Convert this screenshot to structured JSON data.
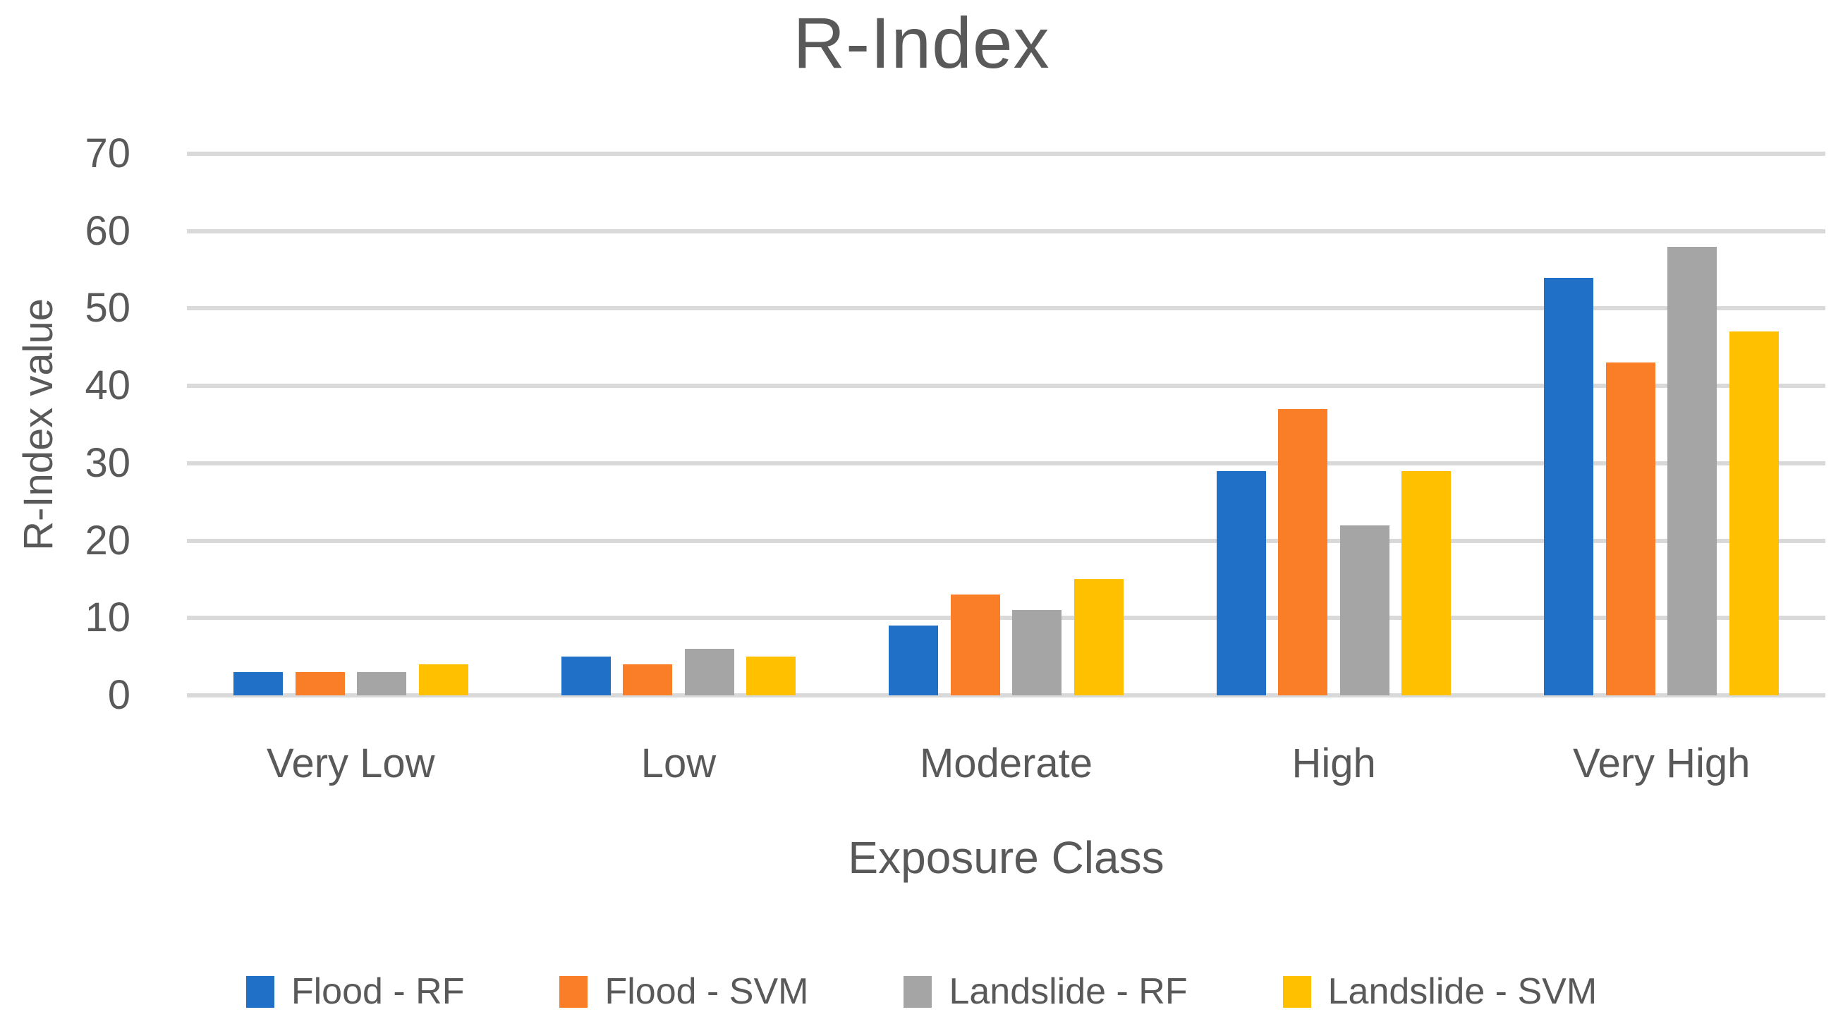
{
  "chart_data": {
    "type": "bar",
    "title": "R-Index",
    "xlabel": "Exposure Class",
    "ylabel": "R-Index value",
    "categories": [
      "Very Low",
      "Low",
      "Moderate",
      "High",
      "Very High"
    ],
    "series": [
      {
        "name": "Flood - RF",
        "color": "#2070C8",
        "values": [
          3,
          5,
          9,
          29,
          54
        ]
      },
      {
        "name": "Flood - SVM",
        "color": "#FA7D28",
        "values": [
          3,
          4,
          13,
          37,
          43
        ]
      },
      {
        "name": "Landslide - RF",
        "color": "#A5A5A5",
        "values": [
          3,
          6,
          11,
          22,
          58
        ]
      },
      {
        "name": "Landslide - SVM",
        "color": "#FFC000",
        "values": [
          4,
          5,
          15,
          29,
          47
        ]
      }
    ],
    "ylim": [
      0,
      70
    ],
    "yticks": [
      0,
      10,
      20,
      30,
      40,
      50,
      60,
      70
    ],
    "grid": "horizontal",
    "legend_position": "bottom",
    "gridline_color": "#D9D9D9",
    "text_color": "#595959"
  }
}
